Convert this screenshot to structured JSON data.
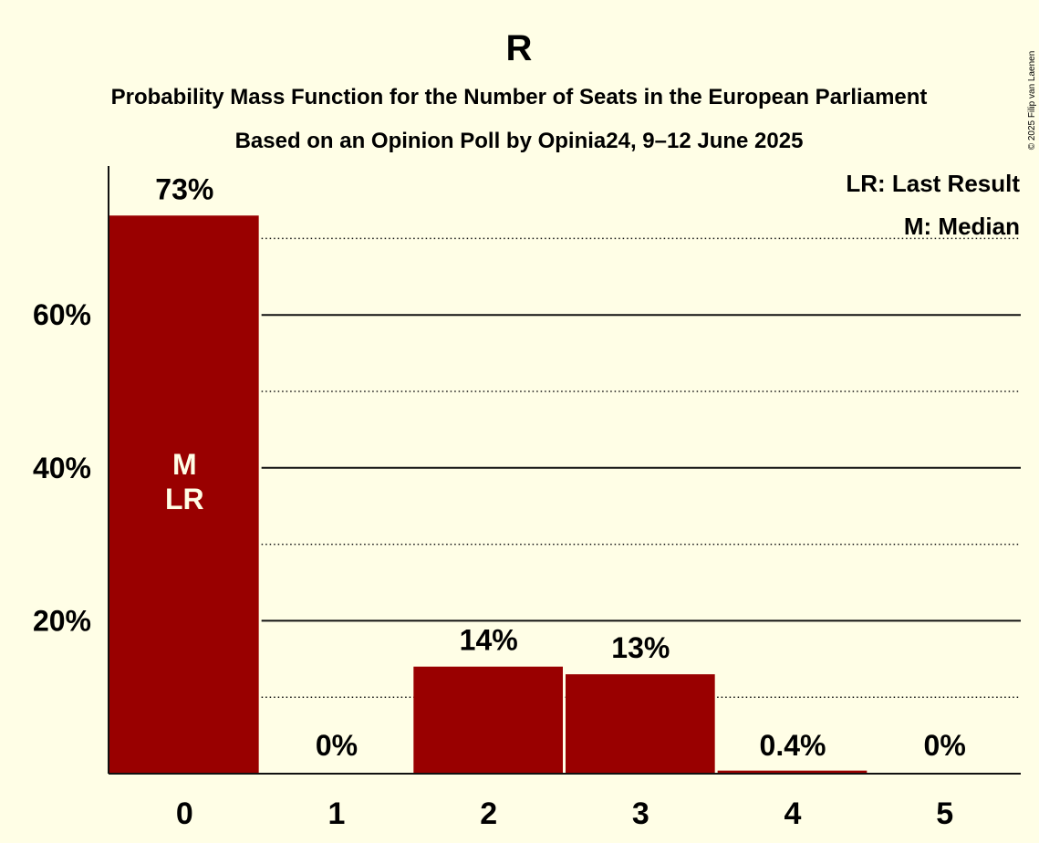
{
  "chart_data": {
    "type": "bar",
    "title": "R",
    "subtitle_1": "Probability Mass Function for the Number of Seats in the European Parliament",
    "subtitle_2": "Based on an Opinion Poll by Opinia24, 9–12 June 2025",
    "copyright": "© 2025 Filip van Laenen",
    "categories": [
      "0",
      "1",
      "2",
      "3",
      "4",
      "5"
    ],
    "values": [
      73,
      0,
      14,
      13,
      0.4,
      0
    ],
    "value_labels": [
      "73%",
      "0%",
      "14%",
      "13%",
      "0.4%",
      "0%"
    ],
    "ylim": [
      0,
      80
    ],
    "yticks": [
      {
        "value": 20,
        "label": "20%"
      },
      {
        "value": 40,
        "label": "40%"
      },
      {
        "value": 60,
        "label": "60%"
      }
    ],
    "dotted_gridlines": [
      10,
      30,
      50,
      70
    ],
    "bar_annotations": [
      {
        "category": "0",
        "lines": [
          "M",
          "LR"
        ]
      }
    ],
    "legend": [
      "LR: Last Result",
      "M: Median"
    ],
    "legend_position": "top-right",
    "colors": {
      "bar": "#990000",
      "background": "#FFFEE6",
      "bar_text": "#FFFEE6"
    }
  }
}
